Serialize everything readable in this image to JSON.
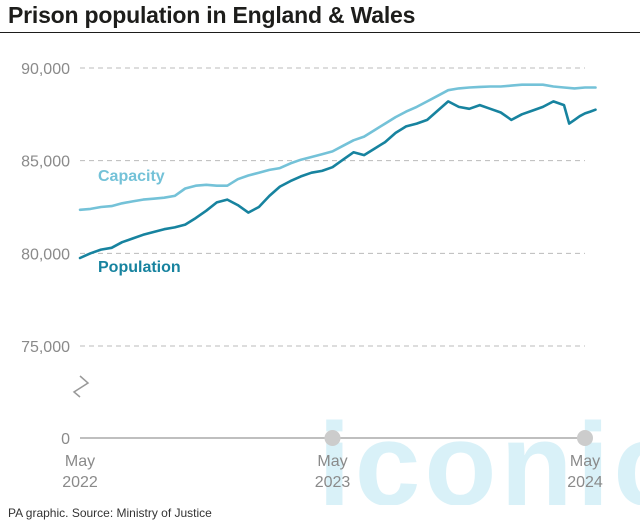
{
  "header": {
    "title": "Prison population in England & Wales"
  },
  "footer": {
    "source": "PA graphic. Source: Ministry of Justice"
  },
  "watermark": {
    "text": "iconic"
  },
  "chart_data": {
    "type": "line",
    "title": "Prison population in England & Wales",
    "xlabel": "",
    "ylabel": "",
    "x_ticks": [
      {
        "line1": "May",
        "line2": "2022",
        "t": 0
      },
      {
        "line1": "May",
        "line2": "2023",
        "t": 12
      },
      {
        "line1": "May",
        "line2": "2024",
        "t": 24
      }
    ],
    "y_ticks": [
      {
        "label": "90,000",
        "v": 90000
      },
      {
        "label": "85,000",
        "v": 85000
      },
      {
        "label": "80,000",
        "v": 80000
      },
      {
        "label": "75,000",
        "v": 75000
      },
      {
        "label": "0",
        "v": 0
      }
    ],
    "ylim": [
      73000,
      90000
    ],
    "y_axis_break": true,
    "grid": "horizontal dashed",
    "colors": {
      "capacity": "#74c2d8",
      "population": "#17839f",
      "axis": "#999999",
      "grid": "#bbbbbb",
      "marker": "#cccccc"
    },
    "series": [
      {
        "name": "Capacity",
        "key": "capacity",
        "points": [
          [
            0,
            82350
          ],
          [
            0.5,
            82400
          ],
          [
            1,
            82500
          ],
          [
            1.5,
            82550
          ],
          [
            2,
            82700
          ],
          [
            2.5,
            82800
          ],
          [
            3,
            82900
          ],
          [
            3.5,
            82950
          ],
          [
            4,
            83000
          ],
          [
            4.5,
            83100
          ],
          [
            5,
            83500
          ],
          [
            5.5,
            83650
          ],
          [
            6,
            83700
          ],
          [
            6.5,
            83650
          ],
          [
            7,
            83650
          ],
          [
            7.5,
            84000
          ],
          [
            8,
            84200
          ],
          [
            8.5,
            84350
          ],
          [
            9,
            84500
          ],
          [
            9.5,
            84600
          ],
          [
            10,
            84850
          ],
          [
            10.5,
            85050
          ],
          [
            11,
            85200
          ],
          [
            11.5,
            85350
          ],
          [
            12,
            85500
          ],
          [
            12.5,
            85800
          ],
          [
            13,
            86100
          ],
          [
            13.5,
            86300
          ],
          [
            14,
            86650
          ],
          [
            14.5,
            87000
          ],
          [
            15,
            87350
          ],
          [
            15.5,
            87650
          ],
          [
            16,
            87900
          ],
          [
            16.5,
            88200
          ],
          [
            17,
            88500
          ],
          [
            17.5,
            88800
          ],
          [
            18,
            88900
          ],
          [
            18.5,
            88950
          ],
          [
            19,
            88980
          ],
          [
            19.5,
            89000
          ],
          [
            20,
            89000
          ],
          [
            20.5,
            89050
          ],
          [
            21,
            89100
          ],
          [
            21.5,
            89100
          ],
          [
            22,
            89100
          ],
          [
            22.5,
            89000
          ],
          [
            23,
            88950
          ],
          [
            23.5,
            88900
          ],
          [
            24,
            88950
          ],
          [
            24.5,
            88950
          ]
        ]
      },
      {
        "name": "Population",
        "key": "population",
        "points": [
          [
            0,
            79750
          ],
          [
            0.5,
            80000
          ],
          [
            1,
            80200
          ],
          [
            1.5,
            80300
          ],
          [
            2,
            80600
          ],
          [
            2.5,
            80800
          ],
          [
            3,
            81000
          ],
          [
            3.5,
            81150
          ],
          [
            4,
            81300
          ],
          [
            4.5,
            81400
          ],
          [
            5,
            81550
          ],
          [
            5.5,
            81900
          ],
          [
            6,
            82300
          ],
          [
            6.5,
            82750
          ],
          [
            7,
            82900
          ],
          [
            7.5,
            82600
          ],
          [
            8,
            82200
          ],
          [
            8.5,
            82500
          ],
          [
            9,
            83100
          ],
          [
            9.5,
            83600
          ],
          [
            10,
            83900
          ],
          [
            10.5,
            84150
          ],
          [
            11,
            84350
          ],
          [
            11.5,
            84450
          ],
          [
            12,
            84650
          ],
          [
            12.5,
            85050
          ],
          [
            13,
            85450
          ],
          [
            13.5,
            85300
          ],
          [
            14,
            85650
          ],
          [
            14.5,
            86000
          ],
          [
            15,
            86500
          ],
          [
            15.5,
            86850
          ],
          [
            16,
            87000
          ],
          [
            16.5,
            87200
          ],
          [
            17,
            87700
          ],
          [
            17.5,
            88200
          ],
          [
            18,
            87900
          ],
          [
            18.5,
            87800
          ],
          [
            19,
            88000
          ],
          [
            19.5,
            87800
          ],
          [
            20,
            87600
          ],
          [
            20.5,
            87200
          ],
          [
            21,
            87500
          ],
          [
            21.5,
            87700
          ],
          [
            22,
            87900
          ],
          [
            22.5,
            88200
          ],
          [
            23,
            88000
          ],
          [
            23.25,
            87000
          ],
          [
            23.5,
            87200
          ],
          [
            23.75,
            87400
          ],
          [
            24,
            87550
          ],
          [
            24.25,
            87650
          ],
          [
            24.5,
            87750
          ]
        ]
      }
    ]
  }
}
